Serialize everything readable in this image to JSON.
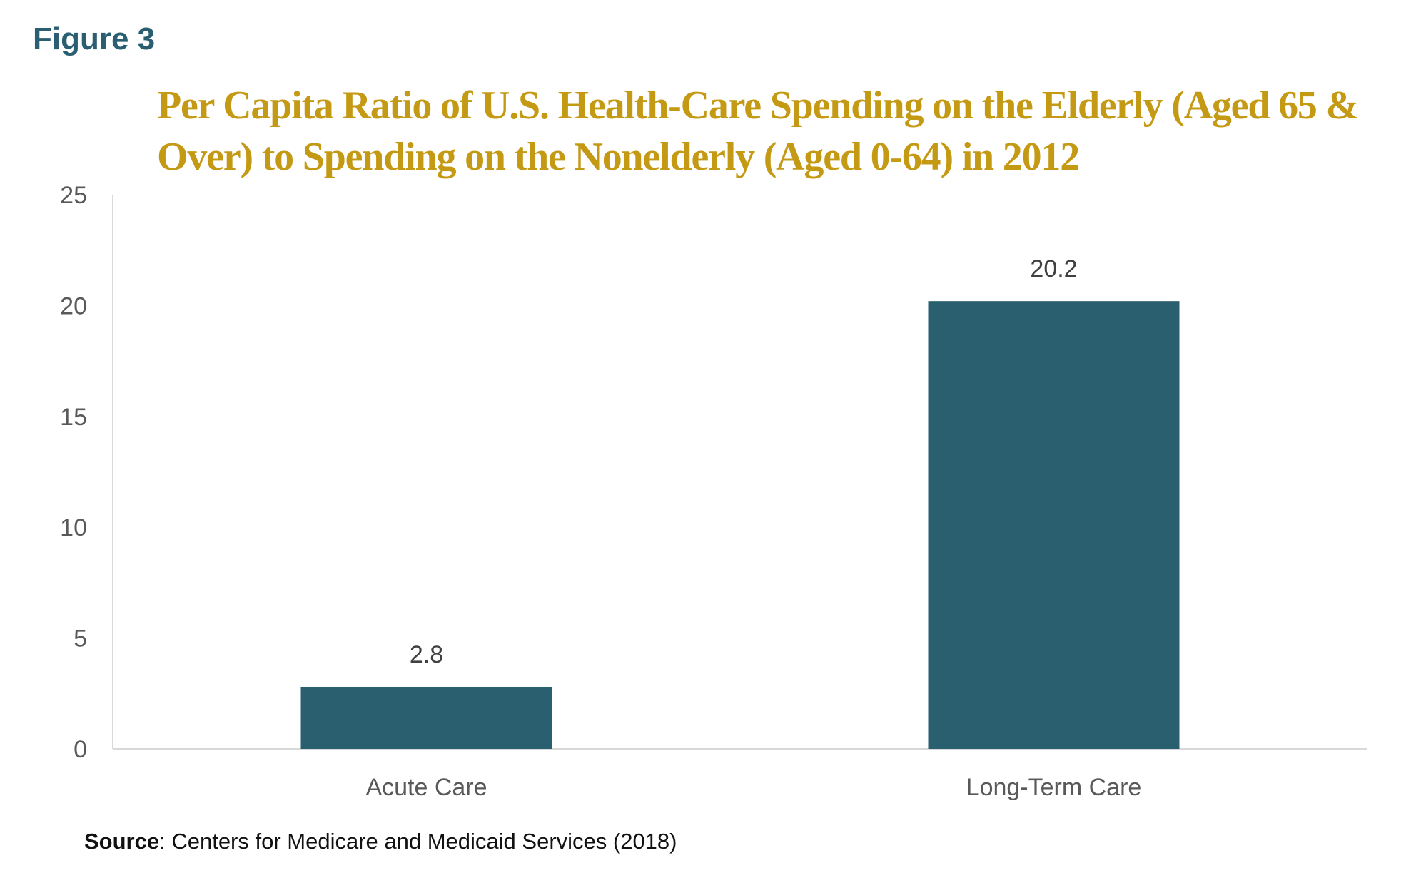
{
  "figure_label": "Figure 3",
  "source": {
    "label": "Source",
    "text": ": Centers for Medicare and Medicaid Services (2018)"
  },
  "colors": {
    "bar": "#2a5f6f",
    "title": "#c49a14",
    "figure_label": "#2a5f72",
    "axis": "#d9d9d9"
  },
  "chart_data": {
    "type": "bar",
    "title": "Per Capita Ratio of U.S. Health-Care Spending on the Elderly (Aged 65 & Over) to Spending on the Nonelderly (Aged 0-64) in 2012",
    "categories": [
      "Acute Care",
      "Long-Term Care"
    ],
    "values": [
      2.8,
      20.2
    ],
    "data_labels": [
      "2.8",
      "20.2"
    ],
    "xlabel": "",
    "ylabel": "",
    "ylim": [
      0,
      25
    ],
    "yticks": [
      0,
      5,
      10,
      15,
      20,
      25
    ],
    "grid": false,
    "legend": "none"
  }
}
